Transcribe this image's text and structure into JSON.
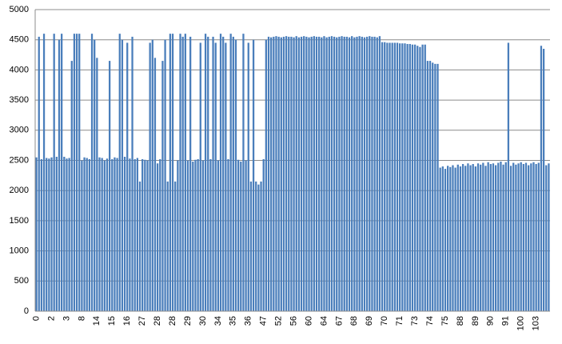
{
  "chart_data": {
    "type": "bar",
    "color": "#4a7ebb",
    "grid": true,
    "ylim": [
      0,
      5000
    ],
    "yticks": [
      0,
      500,
      1000,
      1500,
      2000,
      2500,
      3000,
      3500,
      4000,
      4500,
      5000
    ],
    "categories": [
      "0",
      null,
      null,
      null,
      null,
      null,
      "2",
      null,
      null,
      null,
      null,
      null,
      "3",
      null,
      null,
      null,
      null,
      null,
      "8",
      null,
      null,
      null,
      null,
      null,
      "14",
      null,
      null,
      null,
      null,
      null,
      "15",
      null,
      null,
      null,
      null,
      null,
      "16",
      null,
      null,
      null,
      null,
      null,
      "27",
      null,
      null,
      null,
      null,
      null,
      "28",
      null,
      null,
      null,
      null,
      null,
      "28",
      null,
      null,
      null,
      null,
      null,
      "29",
      null,
      null,
      null,
      null,
      null,
      "30",
      null,
      null,
      null,
      null,
      null,
      "34",
      null,
      null,
      null,
      null,
      null,
      "35",
      null,
      null,
      null,
      null,
      null,
      "36",
      null,
      null,
      null,
      null,
      null,
      "47",
      null,
      null,
      null,
      null,
      null,
      "52",
      null,
      null,
      null,
      null,
      null,
      "56",
      null,
      null,
      null,
      null,
      null,
      "60",
      null,
      null,
      null,
      null,
      null,
      "64",
      null,
      null,
      null,
      null,
      null,
      "67",
      null,
      null,
      null,
      null,
      null,
      "68",
      null,
      null,
      null,
      null,
      null,
      "69",
      null,
      null,
      null,
      null,
      null,
      "70",
      null,
      null,
      null,
      null,
      null,
      "71",
      null,
      null,
      null,
      null,
      null,
      "73",
      null,
      null,
      null,
      null,
      null,
      "74",
      null,
      null,
      null,
      null,
      null,
      "75",
      null,
      null,
      null,
      null,
      null,
      "88",
      null,
      null,
      null,
      null,
      null,
      "89",
      null,
      null,
      null,
      null,
      null,
      "90",
      null,
      null,
      null,
      null,
      null,
      "91",
      null,
      null,
      null,
      null,
      null,
      "100",
      null,
      null,
      null,
      null,
      null,
      "103",
      null,
      null,
      null,
      null,
      null
    ],
    "values": [
      2550,
      4550,
      2520,
      4600,
      2540,
      2530,
      2550,
      4600,
      2560,
      4500,
      4600,
      2560,
      2530,
      2540,
      4150,
      4600,
      4600,
      4600,
      2500,
      2550,
      2540,
      2520,
      4600,
      4500,
      4200,
      2550,
      2540,
      2500,
      2530,
      4150,
      2520,
      2550,
      2540,
      4600,
      4500,
      2560,
      4450,
      2530,
      4550,
      2520,
      2540,
      2150,
      2520,
      2510,
      2500,
      4450,
      4500,
      4200,
      2450,
      2520,
      4150,
      4500,
      2150,
      4600,
      4600,
      2150,
      2500,
      4600,
      4550,
      4600,
      2500,
      4550,
      2480,
      2510,
      2520,
      4450,
      2500,
      4600,
      4550,
      2520,
      4550,
      4450,
      2500,
      4600,
      4550,
      4450,
      2520,
      4600,
      4550,
      4500,
      2510,
      2480,
      4600,
      2500,
      4450,
      2150,
      4500,
      2150,
      2100,
      2150,
      2520,
      4500,
      4550,
      4540,
      4550,
      4560,
      4550,
      4540,
      4550,
      4560,
      4550,
      4550,
      4540,
      4560,
      4540,
      4550,
      4560,
      4550,
      4540,
      4550,
      4560,
      4550,
      4550,
      4540,
      4560,
      4540,
      4550,
      4560,
      4550,
      4540,
      4550,
      4560,
      4550,
      4550,
      4540,
      4560,
      4540,
      4550,
      4560,
      4550,
      4540,
      4550,
      4560,
      4550,
      4550,
      4540,
      4560,
      4460,
      4460,
      4450,
      4450,
      4450,
      4450,
      4450,
      4440,
      4440,
      4440,
      4430,
      4430,
      4420,
      4420,
      4400,
      4380,
      4420,
      4420,
      4150,
      4150,
      4120,
      4100,
      4100,
      2380,
      2400,
      2360,
      2410,
      2390,
      2420,
      2380,
      2430,
      2400,
      2440,
      2410,
      2450,
      2420,
      2440,
      2400,
      2450,
      2430,
      2460,
      2410,
      2470,
      2440,
      2450,
      2420,
      2460,
      2480,
      2430,
      2470,
      4450,
      2410,
      2460,
      2430,
      2450,
      2470,
      2440,
      2460,
      2420,
      2450,
      2470,
      2440,
      2460,
      4400,
      4350,
      2420,
      2450
    ]
  }
}
